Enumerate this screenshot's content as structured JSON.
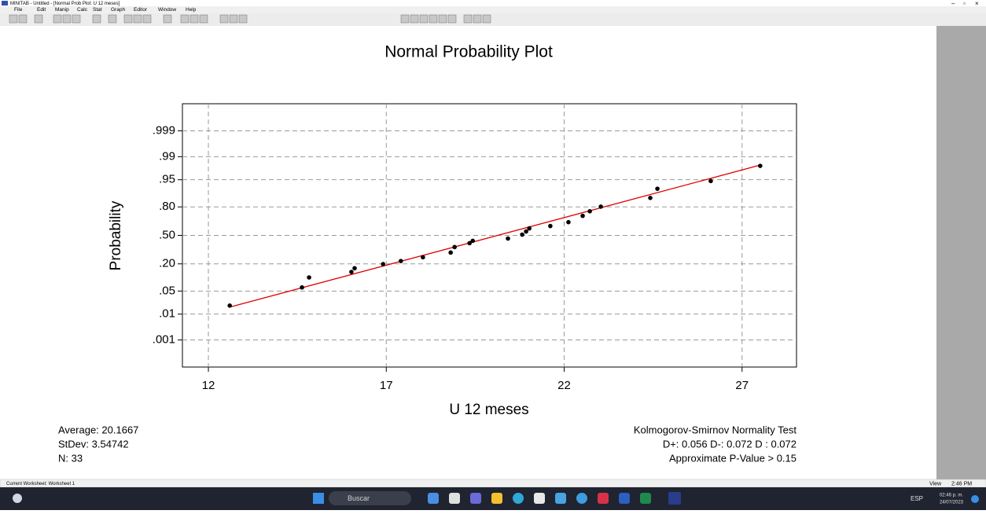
{
  "window": {
    "title": "MINITAB - Untitled - [Normal Prob Plot: U 12 meses]"
  },
  "menu": {
    "items": [
      "File",
      "Edit",
      "Manip",
      "Calc",
      "Stat",
      "Graph",
      "Editor",
      "Window",
      "Help"
    ]
  },
  "chart_data": {
    "type": "scatter",
    "title": "Normal Probability Plot",
    "x_label": "U 12 meses",
    "y_label": "Probability",
    "yscale": "probit",
    "grid": true,
    "xlim": [
      11.27,
      28.53
    ],
    "xticks": [
      12,
      17,
      22,
      27
    ],
    "ylim": [
      5e-05,
      0.99995
    ],
    "yticks": [
      {
        "value": 0.001,
        "label": ".001"
      },
      {
        "value": 0.01,
        "label": ".01"
      },
      {
        "value": 0.05,
        "label": ".05"
      },
      {
        "value": 0.2,
        "label": ".20"
      },
      {
        "value": 0.5,
        "label": ".50"
      },
      {
        "value": 0.8,
        "label": ".80"
      },
      {
        "value": 0.95,
        "label": ".95"
      },
      {
        "value": 0.99,
        "label": ".99"
      },
      {
        "value": 0.999,
        "label": ".999"
      }
    ],
    "series": [
      {
        "color": "#000000",
        "x": [
          12.6,
          14.63,
          14.83,
          16.02,
          16.11,
          16.91,
          17.41,
          18.03,
          18.81,
          18.92,
          19.34,
          19.43,
          20.42,
          20.82,
          20.93,
          21.02,
          21.61,
          22.12,
          22.52,
          22.72,
          23.03,
          24.42,
          24.62,
          26.12,
          27.51
        ],
        "values": [
          0.019,
          0.062,
          0.107,
          0.14,
          0.166,
          0.198,
          0.224,
          0.259,
          0.306,
          0.365,
          0.409,
          0.436,
          0.463,
          0.509,
          0.546,
          0.582,
          0.609,
          0.652,
          0.718,
          0.762,
          0.802,
          0.866,
          0.916,
          0.946,
          0.98
        ]
      }
    ],
    "fit_line": {
      "color": "#e00000",
      "x": [
        12.6,
        27.5
      ],
      "values": [
        0.017,
        0.981
      ]
    },
    "annotations": [
      "Average: 20.1667",
      "StDev: 3.54742",
      "N: 33",
      "Kolmogorov-Smirnov Normality Test",
      "D+: 0.056  D-: 0.072  D : 0.072",
      "Approximate P-Value > 0.15"
    ]
  },
  "status": {
    "worksheet": "Current Worksheet: Worksheet 1",
    "view": "View",
    "time": "2:46 PM"
  },
  "taskbar": {
    "search": "Buscar",
    "lang": "ESP",
    "time": "02:46 p. m.",
    "date": "24/07/2023"
  }
}
